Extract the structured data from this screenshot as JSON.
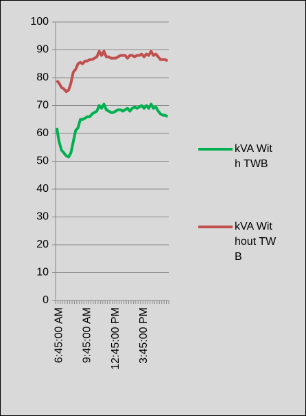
{
  "chart_data": {
    "type": "line",
    "categories": [
      null,
      "6:45:00 AM",
      null,
      null,
      null,
      null,
      null,
      null,
      null,
      null,
      null,
      null,
      null,
      "9:45:00 AM",
      null,
      null,
      null,
      null,
      null,
      null,
      null,
      null,
      null,
      null,
      null,
      "12:45:00 PM",
      null,
      null,
      null,
      null,
      null,
      null,
      null,
      null,
      null,
      null,
      null,
      "3:45:00 PM",
      null,
      null,
      null,
      null,
      null,
      null,
      null,
      null,
      null,
      null
    ],
    "series": [
      {
        "name": "kVA With TWB",
        "color": "#00b050",
        "values": [
          62,
          57,
          54,
          53,
          52,
          51.5,
          53,
          57,
          61,
          62,
          65,
          65,
          65.5,
          66,
          66,
          67,
          67.5,
          68,
          70,
          69,
          70.5,
          68.5,
          68,
          67.5,
          67.5,
          68,
          68.5,
          68.5,
          68,
          68.5,
          69,
          68,
          69,
          69.5,
          69,
          69.5,
          70,
          69,
          70,
          69,
          70.5,
          69,
          69.5,
          68,
          67,
          66.5,
          66.5,
          66
        ]
      },
      {
        "name": "kVA Without TWB",
        "color": "#c0504d",
        "values": [
          79,
          78,
          76.5,
          76,
          75,
          75.5,
          78,
          82,
          83,
          85,
          85.5,
          85,
          86,
          86,
          86.5,
          86.5,
          87,
          87.5,
          89.5,
          88,
          89.5,
          87.5,
          87.5,
          87,
          87,
          87,
          87.5,
          88,
          88,
          88,
          87,
          88,
          88,
          87.5,
          88,
          88,
          88.5,
          87.5,
          88.5,
          88,
          89.5,
          88,
          88.5,
          87.5,
          86.5,
          86.5,
          86.5,
          86
        ]
      }
    ],
    "ylim": [
      0,
      100
    ],
    "yticks": [
      0,
      10,
      20,
      30,
      40,
      50,
      60,
      70,
      80,
      90,
      100
    ],
    "grid": true,
    "legend": "right"
  }
}
